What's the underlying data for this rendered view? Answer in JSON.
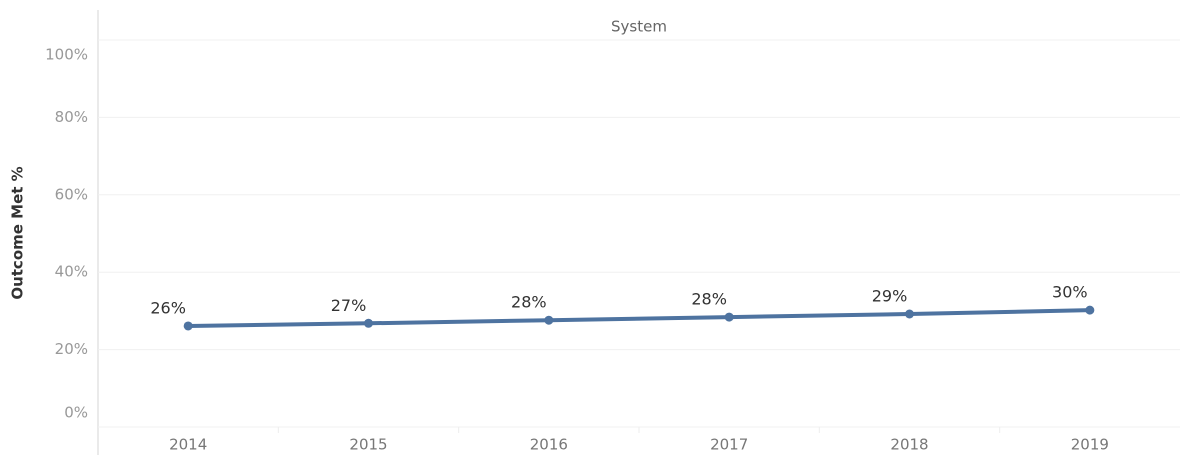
{
  "chart_data": {
    "type": "line",
    "title": "System",
    "y_label": "Outcome Met %",
    "categories": [
      "2014",
      "2015",
      "2016",
      "2017",
      "2018",
      "2019"
    ],
    "series": [
      {
        "name": "Outcome Met %",
        "color": "#4e73a0",
        "values": [
          26.1,
          26.8,
          27.6,
          28.4,
          29.2,
          30.2
        ],
        "value_labels": [
          "26%",
          "27%",
          "28%",
          "28%",
          "29%",
          "30%"
        ]
      }
    ],
    "ylim": [
      0,
      100
    ],
    "yticks": [
      {
        "value": 0,
        "label": "0%"
      },
      {
        "value": 20,
        "label": "20%"
      },
      {
        "value": 40,
        "label": "40%"
      },
      {
        "value": 60,
        "label": "60%"
      },
      {
        "value": 80,
        "label": "80%"
      },
      {
        "value": 100,
        "label": "100%"
      }
    ],
    "grid": true
  }
}
